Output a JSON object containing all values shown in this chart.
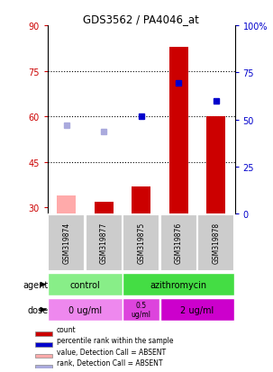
{
  "title": "GDS3562 / PA4046_at",
  "samples": [
    "GSM319874",
    "GSM319877",
    "GSM319875",
    "GSM319876",
    "GSM319878"
  ],
  "bar_values": [
    34,
    32,
    37,
    83,
    60
  ],
  "bar_absent": [
    true,
    false,
    false,
    false,
    false
  ],
  "rank_values": [
    57,
    55,
    60,
    71,
    65
  ],
  "rank_absent": [
    true,
    true,
    false,
    false,
    false
  ],
  "ylim_left": [
    28,
    90
  ],
  "ylim_right": [
    0,
    100
  ],
  "yticks_left": [
    30,
    45,
    60,
    75,
    90
  ],
  "yticks_right": [
    0,
    25,
    50,
    75,
    100
  ],
  "ytick_labels_left": [
    "30",
    "45",
    "60",
    "75",
    "90"
  ],
  "ytick_labels_right": [
    "0",
    "25",
    "50",
    "75",
    "100%"
  ],
  "hlines": [
    45,
    60,
    75
  ],
  "color_red": "#cc0000",
  "color_pink": "#ffaaaa",
  "color_blue": "#0000cc",
  "color_lightblue": "#aaaadd",
  "bar_width": 0.5,
  "agent_control_color": "#88ee88",
  "agent_azithro_color": "#44dd44",
  "dose_0_color": "#ee88ee",
  "dose_05_color": "#dd44dd",
  "dose_2_color": "#cc00cc",
  "sample_bg_color": "#cccccc",
  "legend_items": [
    {
      "label": "count",
      "color": "#cc0000"
    },
    {
      "label": "percentile rank within the sample",
      "color": "#0000cc"
    },
    {
      "label": "value, Detection Call = ABSENT",
      "color": "#ffaaaa"
    },
    {
      "label": "rank, Detection Call = ABSENT",
      "color": "#aaaadd"
    }
  ]
}
